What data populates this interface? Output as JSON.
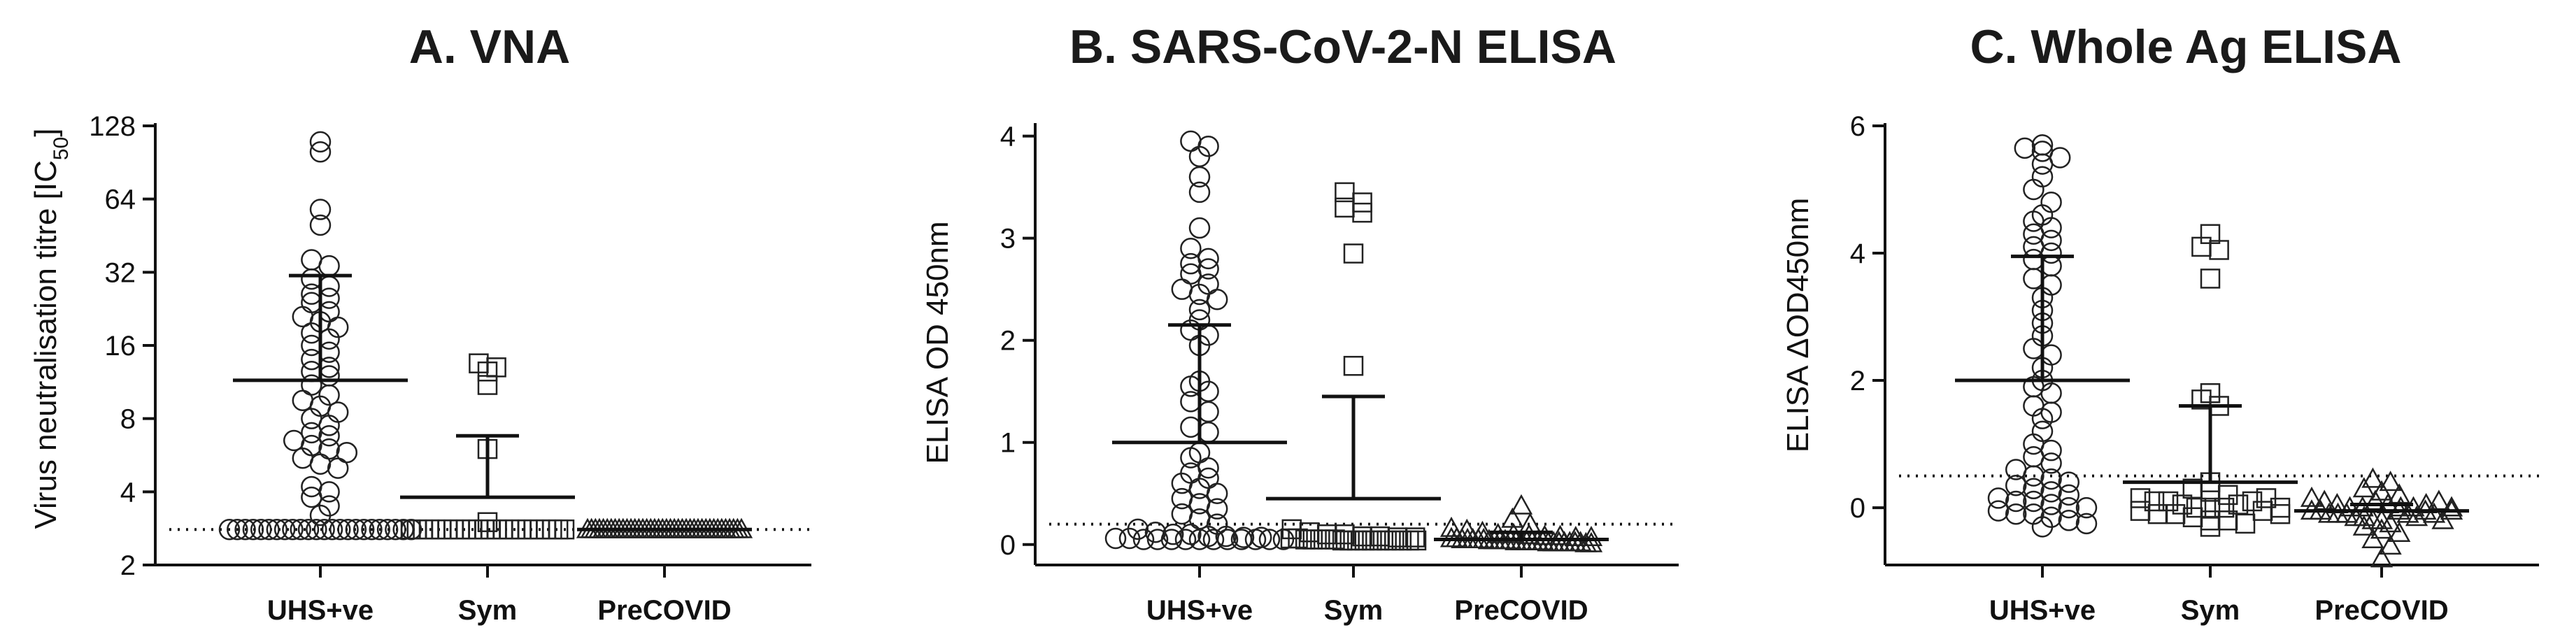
{
  "chart_data": [
    {
      "type": "scatter",
      "title": "A. VNA",
      "ylabel": "Virus neutralisation titre [IC₅₀]",
      "ylabel_main": "Virus neutralisation titre [IC",
      "ylabel_sub": "50",
      "ylabel_end": "]",
      "yscale": "log2",
      "ylim": [
        2,
        128
      ],
      "yticks": [
        2,
        4,
        8,
        16,
        32,
        64,
        128
      ],
      "ytick_labels": [
        "2",
        "4",
        "8",
        "16",
        "32",
        "64",
        "128"
      ],
      "categories": [
        "UHS+ve",
        "Sym",
        "PreCOVID"
      ],
      "threshold": 2.8,
      "groups": [
        {
          "category": "UHS+ve",
          "marker": "circle",
          "mean": 11.5,
          "sd_upper": 31,
          "values": [
            110,
            100,
            58,
            50,
            36,
            34,
            30,
            28,
            26,
            25,
            24,
            22,
            21,
            20,
            19,
            18,
            17,
            16,
            15,
            14,
            13,
            12.5,
            12,
            11,
            10,
            9.5,
            9,
            8.5,
            8,
            7.5,
            7,
            6.8,
            6.5,
            6.2,
            6,
            5.8,
            5.5,
            5.2,
            5,
            4.2,
            4,
            3.8,
            3.5,
            3.2,
            2.8,
            2.8,
            2.8,
            2.8,
            2.8,
            2.8,
            2.8,
            2.8,
            2.8,
            2.8,
            2.8,
            2.8,
            2.8,
            2.8,
            2.8,
            2.8,
            2.8,
            2.8,
            2.8,
            2.8,
            2.8,
            2.8,
            2.8,
            2.8
          ]
        },
        {
          "category": "Sym",
          "marker": "square",
          "mean": 3.8,
          "sd_upper": 6.8,
          "values": [
            13.5,
            13,
            12.5,
            11,
            6,
            3,
            2.8,
            2.8,
            2.8,
            2.8,
            2.8,
            2.8,
            2.8,
            2.8,
            2.8,
            2.8,
            2.8,
            2.8,
            2.8,
            2.8,
            2.8,
            2.8,
            2.8,
            2.8,
            2.8,
            2.8,
            2.8,
            2.8,
            2.8,
            2.8,
            2.8,
            2.8
          ]
        },
        {
          "category": "PreCOVID",
          "marker": "triangle",
          "mean": 2.8,
          "sd_upper": 2.8,
          "values": [
            2.8,
            2.8,
            2.8,
            2.8,
            2.8,
            2.8,
            2.8,
            2.8,
            2.8,
            2.8,
            2.8,
            2.8,
            2.8,
            2.8,
            2.8,
            2.8,
            2.8,
            2.8,
            2.8,
            2.8,
            2.8,
            2.8,
            2.8,
            2.8,
            2.8,
            2.8,
            2.8,
            2.8,
            2.8,
            2.8,
            2.8,
            2.8,
            2.8,
            2.8,
            2.8,
            2.8,
            2.8,
            2.8,
            2.8,
            2.8
          ]
        }
      ]
    },
    {
      "type": "scatter",
      "title": "B. SARS-CoV-2-N ELISA",
      "ylabel": "ELISA OD 450nm",
      "yscale": "linear",
      "ylim": [
        -0.2,
        4.1
      ],
      "yticks": [
        0,
        1,
        2,
        3,
        4
      ],
      "ytick_labels": [
        "0",
        "1",
        "2",
        "3",
        "4"
      ],
      "categories": [
        "UHS+ve",
        "Sym",
        "PreCOVID"
      ],
      "threshold": 0.2,
      "groups": [
        {
          "category": "UHS+ve",
          "marker": "circle",
          "mean": 1.0,
          "sd_upper": 2.15,
          "values": [
            3.95,
            3.9,
            3.8,
            3.6,
            3.45,
            3.1,
            2.9,
            2.8,
            2.75,
            2.7,
            2.65,
            2.55,
            2.5,
            2.45,
            2.4,
            2.3,
            2.2,
            2.1,
            2.05,
            1.95,
            1.6,
            1.55,
            1.5,
            1.4,
            1.3,
            1.15,
            1.1,
            0.9,
            0.85,
            0.75,
            0.7,
            0.65,
            0.6,
            0.55,
            0.5,
            0.45,
            0.4,
            0.35,
            0.3,
            0.25,
            0.2,
            0.15,
            0.12,
            0.1,
            0.1,
            0.08,
            0.08,
            0.07,
            0.07,
            0.06,
            0.06,
            0.05,
            0.05,
            0.05,
            0.05,
            0.05,
            0.05,
            0.05,
            0.05,
            0.05,
            0.05,
            0.05
          ]
        },
        {
          "category": "Sym",
          "marker": "square",
          "mean": 0.45,
          "sd_upper": 1.45,
          "values": [
            3.45,
            3.35,
            3.3,
            3.25,
            2.85,
            1.75,
            0.15,
            0.12,
            0.1,
            0.1,
            0.08,
            0.08,
            0.07,
            0.07,
            0.06,
            0.06,
            0.05,
            0.05,
            0.05,
            0.05,
            0.05,
            0.04,
            0.04,
            0.04,
            0.04,
            0.04,
            0.04,
            0.04,
            0.04,
            0.04,
            0.04,
            0.04
          ]
        },
        {
          "category": "PreCOVID",
          "marker": "triangle",
          "mean": 0.05,
          "sd_upper": 0.12,
          "values": [
            0.38,
            0.25,
            0.2,
            0.16,
            0.14,
            0.12,
            0.1,
            0.1,
            0.09,
            0.08,
            0.08,
            0.07,
            0.07,
            0.06,
            0.06,
            0.05,
            0.05,
            0.05,
            0.05,
            0.05,
            0.04,
            0.04,
            0.04,
            0.04,
            0.04,
            0.03,
            0.03,
            0.03,
            0.03,
            0.03,
            0.03,
            0.02,
            0.02,
            0.02,
            0.02,
            0.02,
            0.02,
            0.02,
            0.01,
            0.01
          ]
        }
      ]
    },
    {
      "type": "scatter",
      "title": "C. Whole Ag ELISA",
      "ylabel": "ELISA ΔOD450nm",
      "yscale": "linear",
      "ylim": [
        -0.9,
        6.0
      ],
      "yticks": [
        0,
        2,
        4,
        6
      ],
      "ytick_labels": [
        "0",
        "2",
        "4",
        "6"
      ],
      "categories": [
        "UHS+ve",
        "Sym",
        "PreCOVID"
      ],
      "threshold": 0.5,
      "groups": [
        {
          "category": "UHS+ve",
          "marker": "circle",
          "mean": 2.0,
          "sd_upper": 3.95,
          "values": [
            5.7,
            5.65,
            5.6,
            5.5,
            5.4,
            5.2,
            5.0,
            4.8,
            4.6,
            4.5,
            4.4,
            4.3,
            4.2,
            4.1,
            4.0,
            3.9,
            3.8,
            3.6,
            3.5,
            3.3,
            3.1,
            2.9,
            2.7,
            2.5,
            2.4,
            2.2,
            2.0,
            1.9,
            1.8,
            1.6,
            1.5,
            1.4,
            1.2,
            1.0,
            0.9,
            0.8,
            0.7,
            0.6,
            0.5,
            0.45,
            0.4,
            0.35,
            0.3,
            0.25,
            0.2,
            0.15,
            0.1,
            0.1,
            0.05,
            0.0,
            0.0,
            -0.05,
            -0.1,
            -0.1,
            -0.15,
            -0.2,
            -0.25,
            -0.3
          ]
        },
        {
          "category": "Sym",
          "marker": "square",
          "mean": 0.4,
          "sd_upper": 1.6,
          "values": [
            4.3,
            4.1,
            4.05,
            3.6,
            1.8,
            1.7,
            1.6,
            0.4,
            0.3,
            0.25,
            0.2,
            0.15,
            0.1,
            0.1,
            0.05,
            0.0,
            0.0,
            -0.05,
            -0.1,
            -0.1,
            -0.15,
            -0.2,
            -0.2,
            -0.25,
            -0.3,
            0.0,
            0.05,
            0.1,
            0.15,
            -0.05,
            -0.1,
            0.0
          ]
        },
        {
          "category": "PreCOVID",
          "marker": "triangle",
          "mean": -0.05,
          "sd_upper": 0.05,
          "values": [
            0.45,
            0.4,
            0.3,
            0.25,
            0.2,
            0.15,
            0.1,
            0.05,
            0.0,
            0.0,
            -0.05,
            -0.05,
            -0.1,
            -0.1,
            -0.1,
            -0.15,
            -0.15,
            -0.2,
            -0.2,
            -0.25,
            -0.3,
            -0.35,
            -0.4,
            -0.5,
            -0.6,
            -0.8,
            0.1,
            0.05,
            0.0,
            -0.05,
            -0.1,
            -0.15,
            0.0,
            -0.05,
            -0.1,
            0.05,
            -0.2,
            0.1,
            -0.05,
            0.0
          ]
        }
      ]
    }
  ]
}
